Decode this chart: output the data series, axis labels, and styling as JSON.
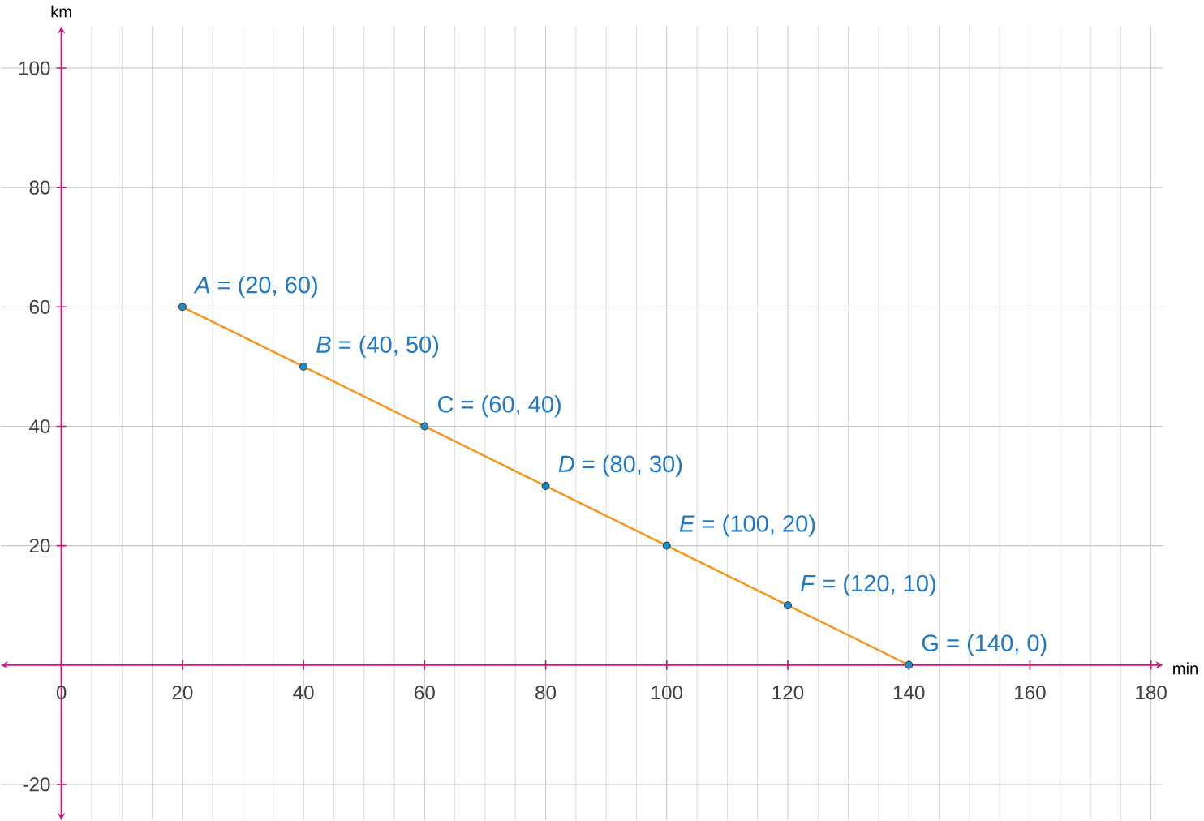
{
  "chart_data": {
    "type": "line",
    "xlabel": "min",
    "ylabel": "km",
    "x": [
      20,
      40,
      60,
      80,
      100,
      120,
      140
    ],
    "series": [
      {
        "color": "#f7941d",
        "values": [
          60,
          50,
          40,
          30,
          20,
          10,
          0
        ]
      }
    ],
    "marker": "circle",
    "line_style": "solid",
    "grid": true,
    "xlim": [
      -10,
      182
    ],
    "ylim": [
      -26,
      107
    ],
    "xticks": [
      0,
      20,
      40,
      60,
      80,
      100,
      120,
      140,
      160,
      180
    ],
    "yticks": [
      -20,
      20,
      40,
      60,
      80,
      100
    ],
    "annotations": [
      {
        "text": "*A* = (20, 60)",
        "x": 20,
        "y": 60
      },
      {
        "text": "*B* = (40, 50)",
        "x": 40,
        "y": 50
      },
      {
        "text": "C = (60, 40)",
        "x": 60,
        "y": 40
      },
      {
        "text": "*D* = (80, 30)",
        "x": 80,
        "y": 30
      },
      {
        "text": "*E* = (100, 20)",
        "x": 100,
        "y": 20
      },
      {
        "text": "*F* = (120, 10)",
        "x": 120,
        "y": 10
      },
      {
        "text": "G = (140, 0)",
        "x": 140,
        "y": 0
      }
    ]
  }
}
